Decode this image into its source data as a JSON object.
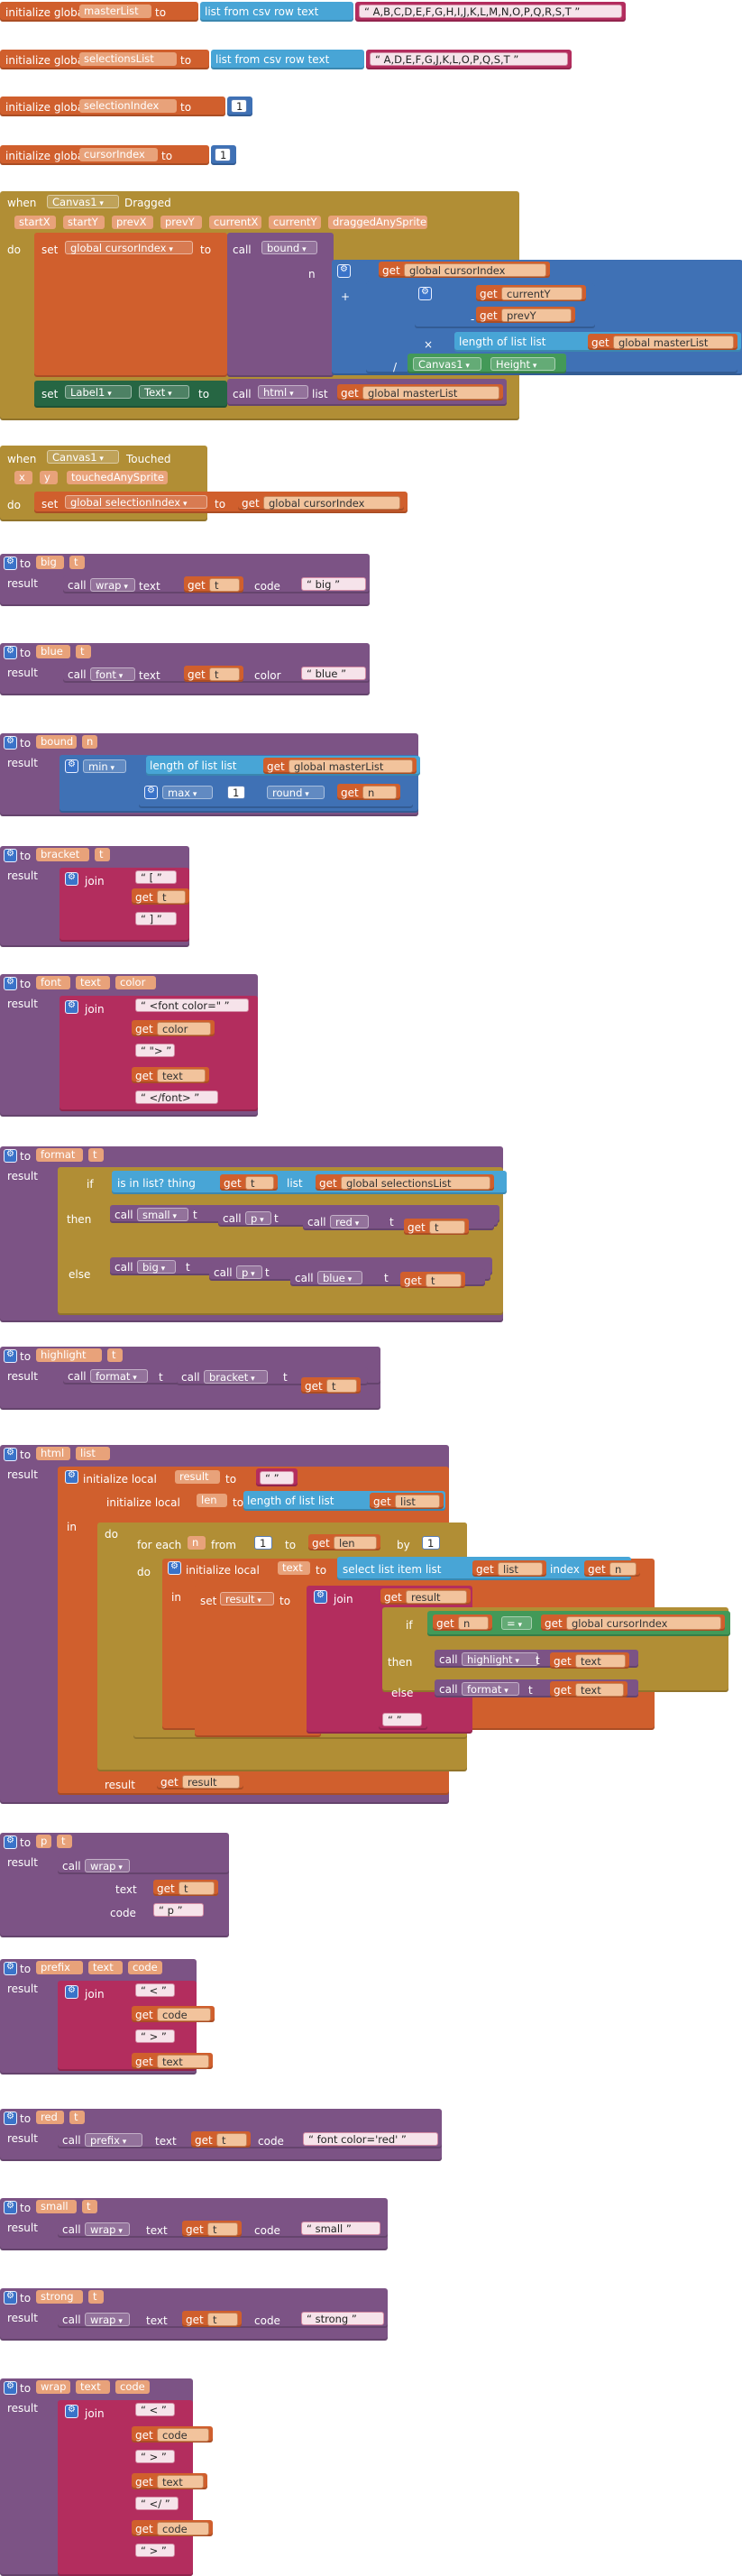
{
  "workspace": {
    "globals": [
      {
        "init": "initialize global",
        "name": "masterList",
        "to": "to",
        "call": "list from csv row  text",
        "value": "A,B,C,D,E,F,G,H,I,J,K,L,M,N,O,P,Q,R,S,T"
      },
      {
        "init": "initialize global",
        "name": "selectionsList",
        "to": "to",
        "call": "list from csv row  text",
        "value": "A,D,E,F,G,J,K,L,O,P,Q,S,T"
      },
      {
        "init": "initialize global",
        "name": "selectionIndex",
        "to": "to",
        "value": "1"
      },
      {
        "init": "initialize global",
        "name": "cursorIndex",
        "to": "to",
        "value": "1"
      }
    ],
    "dragged": {
      "when": "when",
      "component": "Canvas1",
      "event": "Dragged",
      "params": [
        "startX",
        "startY",
        "prevX",
        "prevY",
        "currentX",
        "currentY",
        "draggedAnySprite"
      ],
      "do": "do",
      "set": "set",
      "target": "global cursorIndex",
      "to": "to",
      "call": "call",
      "proc": "bound",
      "arg_n": "n",
      "get": "get",
      "cursor": "global cursorIndex",
      "plus": "+",
      "minus": "-",
      "times": "×",
      "divide": "/",
      "currentY": "currentY",
      "prevY": "prevY",
      "length_of_list": "length of list  list",
      "master": "global masterList",
      "canvas": "Canvas1",
      "height": "Height",
      "set2": "set",
      "label": "Label1",
      "prop": "Text",
      "to2": "to",
      "call2": "call",
      "html": "html",
      "list": "list"
    },
    "touched": {
      "when": "when",
      "component": "Canvas1",
      "event": "Touched",
      "params": [
        "x",
        "y",
        "touchedAnySprite"
      ],
      "do": "do",
      "set": "set",
      "target": "global selectionIndex",
      "to": "to",
      "get": "get",
      "value": "global cursorIndex"
    },
    "common": {
      "to": "to",
      "result": "result",
      "call": "call",
      "get": "get",
      "join": "join",
      "text": "text",
      "code": "code",
      "t": "t",
      "wrap": "wrap",
      "color": "color"
    },
    "big": {
      "name": "big",
      "param": "t",
      "code": "big"
    },
    "blue": {
      "name": "blue",
      "param": "t",
      "fn": "font",
      "color": "blue"
    },
    "bound": {
      "name": "bound",
      "param": "n",
      "min": "min",
      "max": "max",
      "one": "1",
      "round": "round",
      "length": "length of list  list",
      "master": "global masterList"
    },
    "bracket": {
      "name": "bracket",
      "param": "t",
      "open": "[",
      "close": "]"
    },
    "font": {
      "name": "font",
      "params": [
        "text",
        "color"
      ],
      "s1": "<font color=\"",
      "s2": "\">",
      "s3": "</font>"
    },
    "format": {
      "name": "format",
      "param": "t",
      "if": "if",
      "is_in_list": "is in list? thing",
      "list": "list",
      "selections": "global selectionsList",
      "then": "then",
      "else": "else",
      "small": "small",
      "big": "big",
      "p": "p",
      "red": "red",
      "blue": "blue"
    },
    "highlight": {
      "name": "highlight",
      "param": "t",
      "fn": "format",
      "inner": "bracket"
    },
    "html": {
      "name": "html",
      "param": "list",
      "in": "in",
      "do": "do",
      "init_local": "initialize local",
      "result": "result",
      "len": "len",
      "length": "length of list  list",
      "for_each": "for each",
      "n": "n",
      "from": "from",
      "one": "1",
      "to": "to",
      "by": "by",
      "by_val": "1",
      "init_text": "initialize local",
      "text": "text",
      "select": "select list item  list",
      "index": "index",
      "set": "set",
      "join": "join",
      "if": "if",
      "eq": "=",
      "cursor": "global cursorIndex",
      "then": "then",
      "else": "else",
      "highlight": "highlight",
      "format": "format",
      "t": "t"
    },
    "p": {
      "name": "p",
      "param": "t",
      "code": "p"
    },
    "prefix": {
      "name": "prefix",
      "params": [
        "text",
        "code"
      ],
      "lt": "<",
      "gt": ">"
    },
    "red": {
      "name": "red",
      "param": "t",
      "fn": "prefix",
      "code": "font color='red'"
    },
    "small": {
      "name": "small",
      "param": "t",
      "code": "small"
    },
    "strong": {
      "name": "strong",
      "param": "t",
      "code": "strong"
    },
    "wrap": {
      "name": "wrap",
      "params": [
        "text",
        "code"
      ],
      "lt": "<",
      "gt": ">",
      "close": "</"
    }
  }
}
